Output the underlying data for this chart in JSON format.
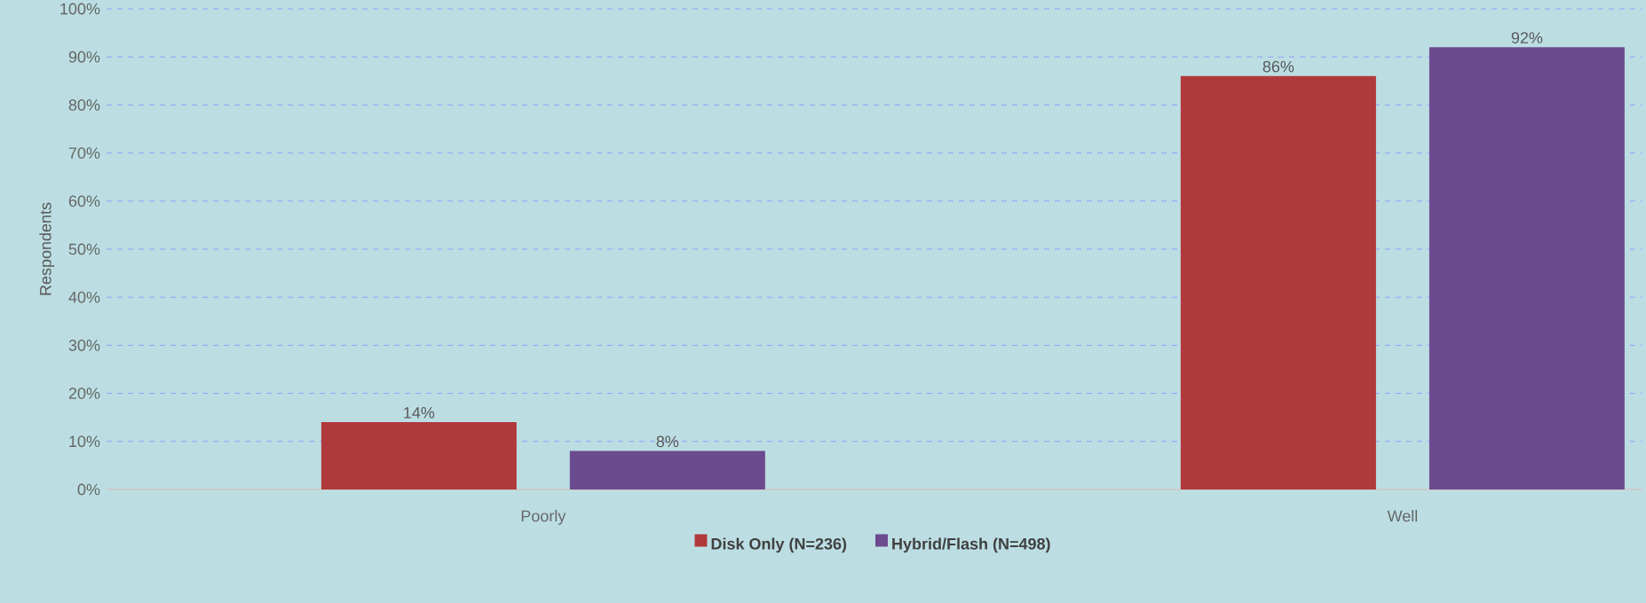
{
  "chart_data": {
    "type": "bar",
    "ylabel": "Respondents",
    "categories": [
      "Poorly",
      "Well"
    ],
    "series": [
      {
        "name": "Disk Only (N=236)",
        "color": "#b0393b",
        "values": [
          14,
          86
        ],
        "value_labels": [
          "14%",
          "86%"
        ]
      },
      {
        "name": "Hybrid/Flash (N=498)",
        "color": "#6c4a8f",
        "values": [
          8,
          92
        ],
        "value_labels": [
          "8%",
          "92%"
        ]
      }
    ],
    "ylim": [
      0,
      100
    ],
    "yticks": [
      {
        "value": 0,
        "label": "0%"
      },
      {
        "value": 10,
        "label": "10%"
      },
      {
        "value": 20,
        "label": "20%"
      },
      {
        "value": 30,
        "label": "30%"
      },
      {
        "value": 40,
        "label": "40%"
      },
      {
        "value": 50,
        "label": "50%"
      },
      {
        "value": 60,
        "label": "60%"
      },
      {
        "value": 70,
        "label": "70%"
      },
      {
        "value": 80,
        "label": "80%"
      },
      {
        "value": 90,
        "label": "90%"
      },
      {
        "value": 100,
        "label": "100%"
      }
    ],
    "grid": "y",
    "legend": "bottom"
  }
}
